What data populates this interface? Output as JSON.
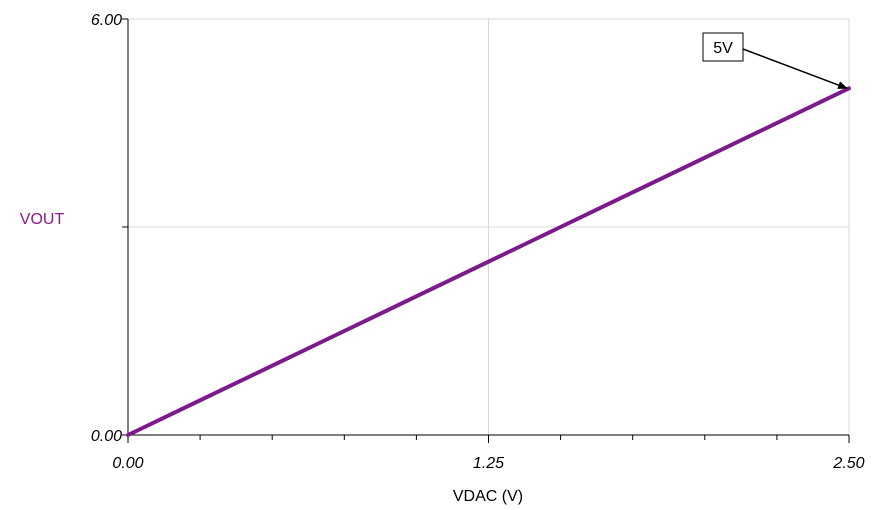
{
  "chart_data": {
    "type": "line",
    "xlabel": "VDAC (V)",
    "ylabel": "VOUT",
    "xlim": [
      0,
      2.5
    ],
    "ylim": [
      0,
      6
    ],
    "x_tick_labels": [
      "0.00",
      "1.25",
      "2.50"
    ],
    "y_tick_labels": [
      "0.00",
      "6.00"
    ],
    "x_ticks": [
      0,
      0.25,
      0.5,
      0.75,
      1.0,
      1.25,
      1.5,
      1.75,
      2.0,
      2.25,
      2.5
    ],
    "y_ticks": [
      0,
      3,
      6
    ],
    "grid": "center lines at x=1.25 and y=3",
    "series": [
      {
        "x": [
          0,
          0.25,
          0.5,
          0.75,
          1.0,
          1.25,
          1.5,
          1.75,
          2.0,
          2.25,
          2.5
        ],
        "y": [
          0,
          0.5,
          1.0,
          1.5,
          2.0,
          2.5,
          3.0,
          3.5,
          4.0,
          4.5,
          5.0
        ]
      }
    ],
    "annotations": [
      {
        "text": "5V",
        "x": 2.5,
        "y": 5.0
      }
    ],
    "colors": {
      "series": "#7b1a8a",
      "ylabel": "#8a1a8a",
      "grid": "#d9d9d9",
      "axis": "#000000"
    }
  }
}
